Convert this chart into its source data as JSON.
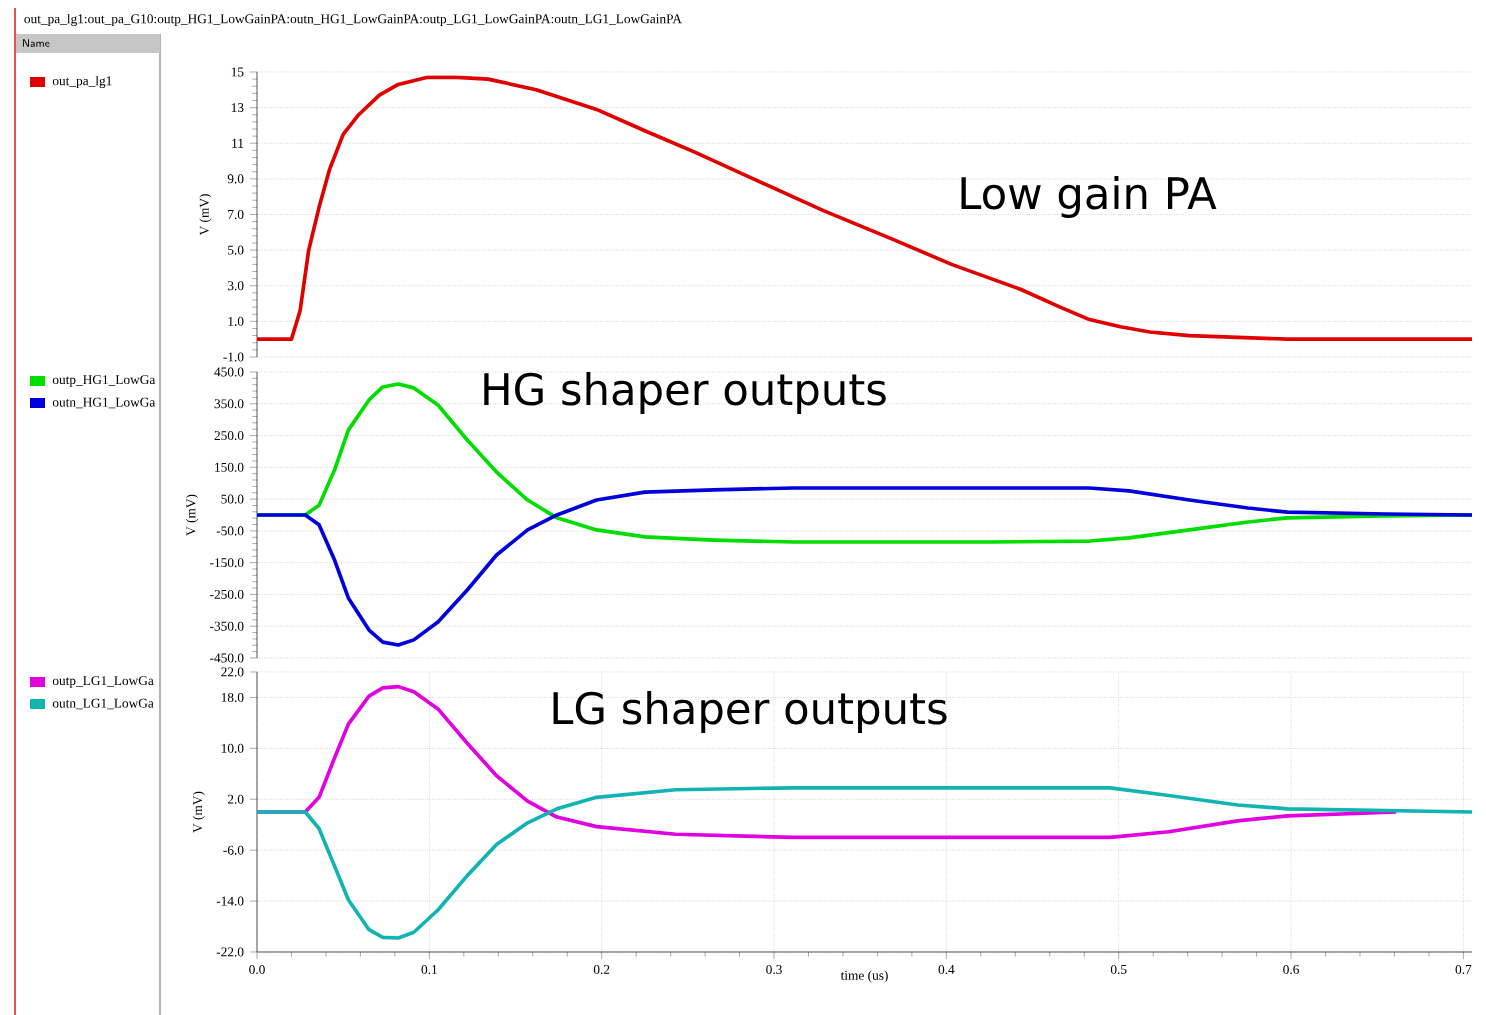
{
  "chart_data": [
    {
      "type": "line",
      "title": "out_pa_lg1:out_pa_G10:outp_HG1_LowGainPA:outn_HG1_LowGainPA:outp_LG1_LowGainPA:outn_LG1_LowGainPA",
      "legend_title": "Name",
      "ylabel": "V (mV)",
      "annotations": [
        "Low gain PA"
      ],
      "grid": true,
      "legend": "left",
      "tick_labels": "y",
      "xlim": [
        0,
        0.705
      ],
      "ylim": [
        -1,
        15
      ],
      "yticks": [
        15,
        13,
        11,
        {
          "value": 9,
          "label": "9.0"
        },
        {
          "value": 7,
          "label": "7.0"
        },
        {
          "value": 5,
          "label": "5.0"
        },
        {
          "value": 3,
          "label": "3.0"
        },
        {
          "value": 1,
          "label": "1.0"
        },
        {
          "value": -1,
          "label": "-1.0"
        }
      ],
      "series": [
        {
          "name": "out_pa_lg1",
          "color": "#e00000",
          "x": [
            0,
            0.02,
            0.025,
            0.03,
            0.036,
            0.042,
            0.05,
            0.059,
            0.071,
            0.082,
            0.099,
            0.116,
            0.134,
            0.162,
            0.197,
            0.225,
            0.254,
            0.288,
            0.329,
            0.369,
            0.403,
            0.443,
            0.466,
            0.483,
            0.501,
            0.518,
            0.541,
            0.598,
            0.705
          ],
          "values": [
            0,
            0,
            1.6,
            5.0,
            7.4,
            9.5,
            11.5,
            12.6,
            13.7,
            14.3,
            14.7,
            14.7,
            14.6,
            14.0,
            12.9,
            11.7,
            10.5,
            9.0,
            7.2,
            5.6,
            4.2,
            2.8,
            1.8,
            1.1,
            0.7,
            0.4,
            0.2,
            0,
            0
          ]
        }
      ]
    },
    {
      "type": "line",
      "ylabel": "V (mV)",
      "annotations": [
        "HG shaper outputs"
      ],
      "grid": true,
      "legend": "left",
      "tick_labels": "y",
      "xlim": [
        0,
        0.705
      ],
      "ylim": [
        -450,
        450
      ],
      "yticks": [
        {
          "value": 450,
          "label": "450.0"
        },
        {
          "value": 350,
          "label": "350.0"
        },
        {
          "value": 250,
          "label": "250.0"
        },
        {
          "value": 150,
          "label": "150.0"
        },
        {
          "value": 50,
          "label": "50.0"
        },
        {
          "value": -50,
          "label": "-50.0"
        },
        {
          "value": -150,
          "label": "-150.0"
        },
        {
          "value": -250,
          "label": "-250.0"
        },
        {
          "value": -350,
          "label": "-350.0"
        },
        {
          "value": -450,
          "label": "-450.0"
        }
      ],
      "series": [
        {
          "name": "outp_HG1_LowGa",
          "color": "#00dd00",
          "x": [
            0,
            0.028,
            0.036,
            0.045,
            0.053,
            0.065,
            0.073,
            0.082,
            0.091,
            0.105,
            0.122,
            0.139,
            0.157,
            0.174,
            0.197,
            0.225,
            0.265,
            0.311,
            0.426,
            0.483,
            0.506,
            0.541,
            0.575,
            0.598,
            0.655,
            0.705
          ],
          "values": [
            0,
            0,
            31,
            142,
            267,
            362,
            403,
            412,
            400,
            346,
            236,
            135,
            47,
            -9,
            -47,
            -69,
            -79,
            -85,
            -85,
            -82,
            -72,
            -47,
            -22,
            -9,
            -3,
            0
          ]
        },
        {
          "name": "outn_HG1_LowGa",
          "color": "#0000dd",
          "x": [
            0,
            0.028,
            0.036,
            0.045,
            0.053,
            0.065,
            0.073,
            0.082,
            0.091,
            0.105,
            0.122,
            0.139,
            0.157,
            0.174,
            0.197,
            0.225,
            0.265,
            0.311,
            0.426,
            0.483,
            0.506,
            0.541,
            0.575,
            0.598,
            0.655,
            0.705
          ],
          "values": [
            0,
            0,
            -31,
            -142,
            -261,
            -362,
            -400,
            -409,
            -393,
            -337,
            -236,
            -126,
            -47,
            0,
            47,
            72,
            79,
            85,
            85,
            85,
            76,
            47,
            22,
            9,
            3,
            0
          ]
        }
      ]
    },
    {
      "type": "line",
      "ylabel": "V (mV)",
      "xlabel": "time (us)",
      "annotations": [
        "LG shaper outputs"
      ],
      "grid": true,
      "legend": "left",
      "xlim": [
        0,
        0.705
      ],
      "ylim": [
        -22,
        22
      ],
      "xticks": [
        {
          "value": 0,
          "label": "0.0"
        },
        0.1,
        0.2,
        0.3,
        0.4,
        0.5,
        0.6,
        0.7
      ],
      "yticks": [
        {
          "value": 22,
          "label": "22.0"
        },
        {
          "value": 18,
          "label": "18.0"
        },
        {
          "value": 10,
          "label": "10.0"
        },
        {
          "value": 2,
          "label": "2.0"
        },
        {
          "value": -6,
          "label": "-6.0"
        },
        {
          "value": -14,
          "label": "-14.0"
        },
        {
          "value": -22,
          "label": "-22.0"
        }
      ],
      "series": [
        {
          "name": "outp_LG1_LowGa",
          "color": "#e000e0",
          "x": [
            0,
            0.028,
            0.036,
            0.045,
            0.053,
            0.065,
            0.073,
            0.082,
            0.091,
            0.105,
            0.122,
            0.139,
            0.157,
            0.174,
            0.197,
            0.243,
            0.311,
            0.495,
            0.529,
            0.569,
            0.598,
            0.661
          ],
          "values": [
            0,
            0,
            2.3,
            8.5,
            13.8,
            18.2,
            19.5,
            19.7,
            18.9,
            16.2,
            10.8,
            5.7,
            1.7,
            -0.8,
            -2.3,
            -3.5,
            -4.0,
            -4.0,
            -3.1,
            -1.4,
            -0.6,
            0
          ]
        },
        {
          "name": "outn_LG1_LowGa",
          "color": "#11b3b3",
          "x": [
            0,
            0.028,
            0.036,
            0.045,
            0.053,
            0.065,
            0.073,
            0.082,
            0.091,
            0.105,
            0.122,
            0.139,
            0.157,
            0.174,
            0.197,
            0.243,
            0.311,
            0.495,
            0.529,
            0.569,
            0.598,
            0.705
          ],
          "values": [
            0,
            0,
            -2.6,
            -8.5,
            -13.8,
            -18.5,
            -19.7,
            -19.8,
            -18.9,
            -15.4,
            -10.0,
            -5.1,
            -1.7,
            0.5,
            2.3,
            3.5,
            3.8,
            3.8,
            2.6,
            1.1,
            0.5,
            0
          ]
        }
      ]
    }
  ]
}
